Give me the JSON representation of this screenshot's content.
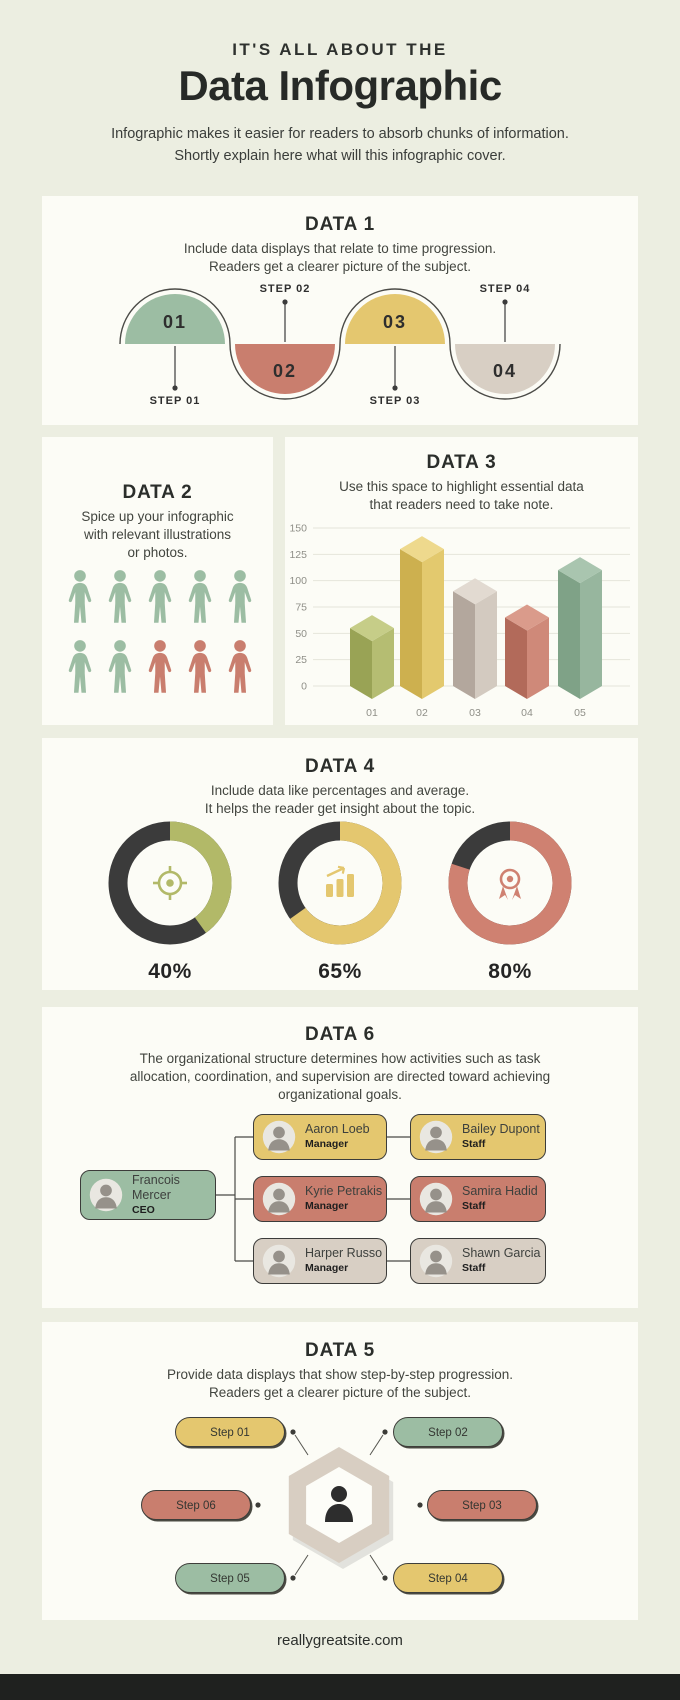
{
  "page": {
    "bg": "#eceee1",
    "panel_bg": "#fcfcf6",
    "footer_text": "reallygreatsite.com",
    "footer_bar_color": "#1f211f"
  },
  "header": {
    "kicker": "IT'S ALL ABOUT THE",
    "title": "Data Infographic",
    "subtitle": [
      "Infographic makes it easier for readers to absorb chunks of information.",
      "Shortly explain here what will this infographic cover."
    ]
  },
  "data1": {
    "title": "DATA 1",
    "desc": [
      "Include data displays that relate to time progression.",
      "Readers get a clearer picture of the subject."
    ],
    "steps": [
      {
        "number": "01",
        "label": "STEP 01",
        "color": "#9cbda3",
        "position": "up"
      },
      {
        "number": "02",
        "label": "STEP 02",
        "color": "#c97e6e",
        "position": "down"
      },
      {
        "number": "03",
        "label": "STEP 03",
        "color": "#e4c76f",
        "position": "up"
      },
      {
        "number": "04",
        "label": "STEP 04",
        "color": "#d8cfc4",
        "position": "down"
      }
    ]
  },
  "data2": {
    "title": "DATA 2",
    "desc": [
      "Spice up your infographic",
      "with relevant illustrations",
      "or photos."
    ],
    "pictogram": {
      "green": "#9cbda3",
      "red": "#c97e6e",
      "people": [
        "green",
        "green",
        "green",
        "green",
        "green",
        "green",
        "green",
        "red",
        "red",
        "red"
      ]
    }
  },
  "data3": {
    "title": "DATA 3",
    "desc": [
      "Use this space to highlight essential data",
      "that readers need to take note."
    ]
  },
  "data4": {
    "title": "DATA 4",
    "desc": [
      "Include data like percentages and average.",
      "It helps the reader get insight about the topic."
    ],
    "track_color": "#3b3b3b",
    "donuts": [
      {
        "percent": 40,
        "label": "40%",
        "color": "#b2b968",
        "icon": "target-icon"
      },
      {
        "percent": 65,
        "label": "65%",
        "color": "#e4c76f",
        "icon": "growth-chart-icon"
      },
      {
        "percent": 80,
        "label": "80%",
        "color": "#cf8171",
        "icon": "award-icon"
      }
    ]
  },
  "data6": {
    "title": "DATA 6",
    "desc": [
      "The organizational structure determines how activities such as task",
      "allocation, coordination, and supervision are directed toward achieving",
      "organizational goals."
    ],
    "ceo": {
      "name": "Francois Mercer",
      "role": "CEO",
      "color": "#9cbda3"
    },
    "managers": [
      {
        "name": "Aaron Loeb",
        "role": "Manager",
        "color": "#e4c76f"
      },
      {
        "name": "Kyrie Petrakis",
        "role": "Manager",
        "color": "#c97e6e"
      },
      {
        "name": "Harper Russo",
        "role": "Manager",
        "color": "#d8cfc4"
      }
    ],
    "staff": [
      {
        "name": "Bailey Dupont",
        "role": "Staff",
        "color": "#e4c76f"
      },
      {
        "name": "Samira Hadid",
        "role": "Staff",
        "color": "#c97e6e"
      },
      {
        "name": "Shawn Garcia",
        "role": "Staff",
        "color": "#d8cfc4"
      }
    ]
  },
  "data5": {
    "title": "DATA 5",
    "desc": [
      "Provide data displays that show step-by-step progression.",
      "Readers get a clearer picture of the subject."
    ],
    "hub_color": "#d8cec2",
    "steps": [
      {
        "label": "Step 01",
        "color": "#e4c76f",
        "pos": "top-left"
      },
      {
        "label": "Step 02",
        "color": "#9cbda3",
        "pos": "top-right"
      },
      {
        "label": "Step 03",
        "color": "#c97e6e",
        "pos": "right"
      },
      {
        "label": "Step 04",
        "color": "#e4c76f",
        "pos": "bottom-right"
      },
      {
        "label": "Step 05",
        "color": "#9cbda3",
        "pos": "bottom-left"
      },
      {
        "label": "Step 06",
        "color": "#c97e6e",
        "pos": "left"
      }
    ]
  },
  "chart_data": [
    {
      "type": "bar",
      "variant": "3d-isometric-columns",
      "title": "DATA 3",
      "categories": [
        "01",
        "02",
        "03",
        "04",
        "05"
      ],
      "values": [
        55,
        130,
        90,
        65,
        110
      ],
      "xlabel": "",
      "ylabel": "",
      "ylim": [
        0,
        150
      ],
      "yticks": [
        0,
        25,
        50,
        75,
        100,
        125,
        150
      ],
      "grid": true,
      "legend": false,
      "colors": [
        {
          "left": "#99a355",
          "right": "#b5bd72",
          "top": "#c6cd88"
        },
        {
          "left": "#cdb04f",
          "right": "#e3c96e",
          "top": "#eed98d"
        },
        {
          "left": "#b3a79d",
          "right": "#d3cac0",
          "top": "#e2dad1"
        },
        {
          "left": "#b26a5a",
          "right": "#cf8979",
          "top": "#da9b8b"
        },
        {
          "left": "#7fa287",
          "right": "#97b69e",
          "top": "#a9c5af"
        }
      ]
    },
    {
      "type": "pie",
      "variant": "donut",
      "series": [
        {
          "name": "40%",
          "value": 40,
          "color": "#b2b968"
        },
        {
          "name": "65%",
          "value": 65,
          "color": "#e4c76f"
        },
        {
          "name": "80%",
          "value": 80,
          "color": "#cf8171"
        }
      ],
      "remainder_color": "#3b3b3b",
      "start_angle": "top",
      "direction": "clockwise"
    },
    {
      "type": "pictogram",
      "total": 10,
      "groups": [
        {
          "name": "green",
          "count": 7
        },
        {
          "name": "red",
          "count": 3
        }
      ]
    },
    {
      "type": "timeline",
      "steps": [
        "STEP 01",
        "STEP 02",
        "STEP 03",
        "STEP 04"
      ]
    }
  ]
}
